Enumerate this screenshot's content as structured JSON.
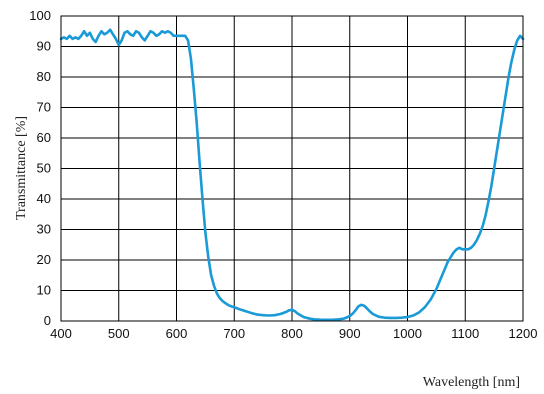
{
  "chart_data": {
    "type": "line",
    "title": "",
    "xlabel": "Wavelength [nm]",
    "ylabel": "Transmittance [%]",
    "xlim": [
      400,
      1200
    ],
    "ylim": [
      0,
      100
    ],
    "x_ticks": [
      "400",
      "500",
      "600",
      "700",
      "800",
      "900",
      "1000",
      "1100",
      "1200"
    ],
    "y_ticks": [
      "0",
      "10",
      "20",
      "30",
      "40",
      "50",
      "60",
      "70",
      "80",
      "90",
      "100"
    ],
    "grid": true,
    "legend": "none",
    "line_color": "#1a9ad6",
    "series": [
      {
        "x": [
          400,
          405,
          410,
          415,
          420,
          425,
          430,
          435,
          440,
          445,
          450,
          455,
          460,
          465,
          470,
          475,
          480,
          485,
          490,
          495,
          500,
          505,
          510,
          515,
          520,
          525,
          530,
          535,
          540,
          545,
          550,
          555,
          560,
          565,
          570,
          575,
          580,
          585,
          590,
          595,
          600,
          605,
          610,
          615,
          620,
          625,
          630,
          635,
          640,
          645,
          650,
          655,
          660,
          665,
          670,
          675,
          680,
          685,
          690,
          695,
          700,
          710,
          720,
          730,
          740,
          750,
          760,
          770,
          780,
          790,
          795,
          800,
          805,
          810,
          820,
          830,
          840,
          850,
          860,
          870,
          880,
          890,
          900,
          905,
          910,
          915,
          920,
          925,
          930,
          935,
          940,
          950,
          960,
          970,
          980,
          990,
          1000,
          1010,
          1020,
          1030,
          1040,
          1050,
          1060,
          1070,
          1080,
          1085,
          1090,
          1095,
          1100,
          1105,
          1110,
          1115,
          1120,
          1125,
          1130,
          1135,
          1140,
          1145,
          1150,
          1155,
          1160,
          1165,
          1170,
          1175,
          1180,
          1185,
          1190,
          1195,
          1200
        ],
        "y": [
          92.5,
          93,
          92.5,
          93.5,
          92.5,
          93,
          92.5,
          93.5,
          95,
          93.5,
          94.5,
          92.5,
          91.5,
          93.5,
          95,
          94,
          94.5,
          95.5,
          94,
          92.5,
          90.5,
          92,
          94.5,
          95,
          94,
          93.5,
          95,
          94.5,
          93,
          92,
          93.5,
          95,
          94.5,
          93.5,
          94,
          95,
          94.5,
          95,
          94.5,
          93.5,
          93.5,
          93.5,
          93.5,
          93.5,
          92,
          86,
          76,
          65,
          52,
          40,
          29,
          21,
          15,
          11.5,
          9,
          7.5,
          6.5,
          5.8,
          5.2,
          4.8,
          4.5,
          3.8,
          3.2,
          2.6,
          2.1,
          1.9,
          1.8,
          1.9,
          2.3,
          3,
          3.5,
          3.7,
          3.2,
          2.4,
          1.3,
          0.8,
          0.5,
          0.4,
          0.4,
          0.4,
          0.5,
          0.8,
          1.6,
          2.4,
          3.5,
          4.8,
          5.3,
          5,
          4.1,
          3.1,
          2.3,
          1.4,
          1.1,
          1,
          1,
          1.1,
          1.3,
          1.8,
          2.8,
          4.5,
          7,
          10.5,
          15,
          19.5,
          22.5,
          23.5,
          24,
          23.5,
          23.5,
          23.5,
          24,
          25,
          26.5,
          28.5,
          31,
          34.5,
          39,
          44,
          50,
          56,
          62,
          68,
          74,
          80,
          85,
          89,
          92,
          93.5,
          92.5
        ]
      }
    ]
  }
}
